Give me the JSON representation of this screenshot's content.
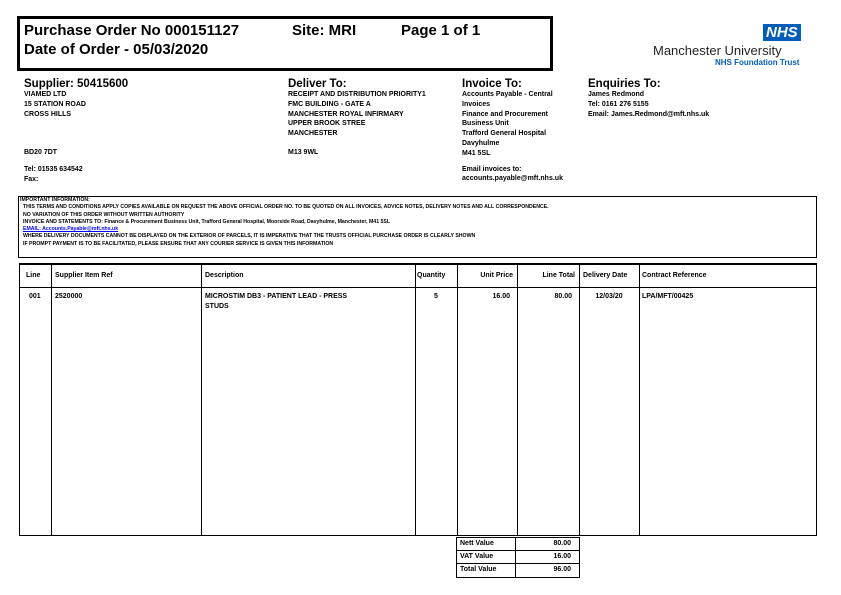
{
  "header": {
    "po_title": "Purchase Order No 000151127",
    "site": "Site: MRI",
    "page": "Page 1 of 1",
    "date": "Date of Order - 05/03/2020"
  },
  "logo": {
    "nhs": "NHS",
    "org": "Manchester University",
    "trust": "NHS Foundation Trust",
    "color": "#005eb8"
  },
  "supplier": {
    "title": "Supplier: 50415600",
    "lines": [
      "VIAMED LTD",
      "15 STATION ROAD",
      "CROSS HILLS"
    ],
    "postcode": "BD20 7DT",
    "tel": "Tel: 01535 634542",
    "fax": "Fax:"
  },
  "deliver": {
    "title": "Deliver To:",
    "lines": [
      "RECEIPT AND DISTRIBUTION PRIORITY1",
      "FMC BUILDING - GATE A",
      "MANCHESTER ROYAL INFIRMARY",
      "UPPER BROOK STREE",
      "MANCHESTER"
    ],
    "postcode": "M13 9WL"
  },
  "invoice": {
    "title": "Invoice To:",
    "lines": [
      "Accounts Payable - Central",
      "Invoices",
      "Finance and Procurement",
      "Business Unit",
      "Trafford General Hospital",
      "Davyhulme",
      "M41 5SL"
    ],
    "email_label": "Email invoices to:",
    "email": "accounts.payable@mft.nhs.uk"
  },
  "enquiries": {
    "title": "Enquiries To:",
    "lines": [
      "James Redmond",
      "Tel: 0161 276 5155",
      "Email: James.Redmond@mft.nhs.uk"
    ]
  },
  "important": {
    "title": "IMPORTANT INFORMATION:",
    "lines": [
      "THIS TERMS AND CONDITIONS APPLY COPIES AVAILABLE ON REQUEST THE ABOVE OFFICIAL ORDER NO. TO BE QUOTED ON ALL INVOICES, ADVICE NOTES, DELIVERY NOTES AND ALL CORRESPONDENCE.",
      "NO VARIATION OF THIS ORDER WITHOUT WRITTEN AUTHORITY",
      "INVOICE AND STATEMENTS TO: Finance & Procurement Business Unit, Trafford General Hospital, Moorside Road, Davyhulme, Manchester, M41 5SL"
    ],
    "link": "EMAIL: Accounts.Payable@mft.nhs.uk",
    "lines2": [
      "WHERE DELIVERY DOCUMENTS CANNOT BE DISPLAYED ON THE EXTERIOR OF PARCELS, IT IS IMPERATIVE THAT THE TRUSTS OFFICIAL PURCHASE ORDER IS CLEARLY SHOWN",
      "IF PROMPT PAYMENT IS TO BE FACILITATED, PLEASE ENSURE THAT ANY COURIER SERVICE IS GIVEN THIS INFORMATION"
    ]
  },
  "table": {
    "headers": [
      "Line",
      "Supplier Item Ref",
      "Description",
      "Quantity",
      "Unit Price",
      "Line Total",
      "Delivery Date",
      "Contract Reference"
    ],
    "rows": [
      {
        "line": "001",
        "ref": "2520000",
        "desc1": "MICROSTIM DB3 - PATIENT LEAD - PRESS",
        "desc2": "STUDS",
        "qty": "5",
        "unit": "16.00",
        "total": "80.00",
        "date": "12/03/20",
        "contract": "LPA/MFT/00425"
      }
    ]
  },
  "totals": {
    "net_label": "Nett Value",
    "net": "80.00",
    "vat_label": "VAT Value",
    "vat": "16.00",
    "total_label": "Total Value",
    "total": "96.00"
  }
}
